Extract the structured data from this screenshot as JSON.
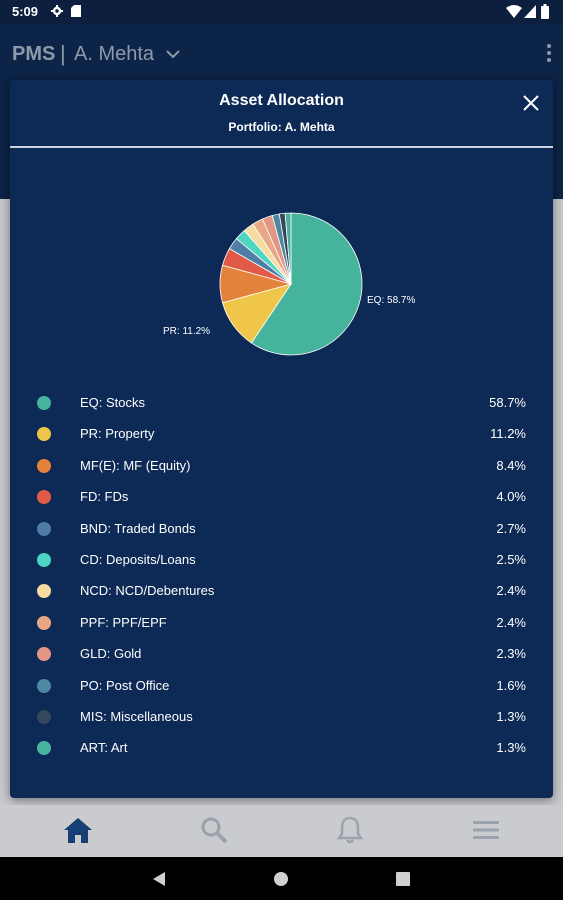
{
  "status_bar": {
    "time": "5:09",
    "icons": [
      "gear-icon",
      "sd-card-icon",
      "wifi-icon",
      "signal-icon",
      "battery-icon"
    ]
  },
  "header": {
    "app_name": "PMS",
    "divider": "|",
    "user": "A. Mehta",
    "icons": [
      "chevron-down-icon",
      "kebab-menu-icon"
    ]
  },
  "modal": {
    "title": "Asset Allocation",
    "subtitle": "Portfolio: A. Mehta",
    "close_icon": "close-icon"
  },
  "chart_data": {
    "type": "pie",
    "title": "",
    "slice_labels": [
      "EQ: 58.7%",
      "PR: 11.2%"
    ],
    "slices": [
      {
        "name": "EQ: Stocks",
        "value": 58.7,
        "color": "#46b39d"
      },
      {
        "name": "PR: Property",
        "value": 11.2,
        "color": "#f0c64a"
      },
      {
        "name": "MF(E): MF (Equity)",
        "value": 8.4,
        "color": "#e4813a"
      },
      {
        "name": "FD: FDs",
        "value": 4.0,
        "color": "#e05a47"
      },
      {
        "name": "BND: Traded Bonds",
        "value": 2.7,
        "color": "#4e7ea7"
      },
      {
        "name": "CD: Deposits/Loans",
        "value": 2.5,
        "color": "#4fd6c2"
      },
      {
        "name": "NCD: NCD/Debentures",
        "value": 2.4,
        "color": "#f4dba0"
      },
      {
        "name": "PPF: PPF/EPF",
        "value": 2.4,
        "color": "#e9a785"
      },
      {
        "name": "GLD: Gold",
        "value": 2.3,
        "color": "#e29784"
      },
      {
        "name": "PO: Post Office",
        "value": 1.6,
        "color": "#4d88a3"
      },
      {
        "name": "MIS: Miscellaneous",
        "value": 1.3,
        "color": "#35475c"
      },
      {
        "name": "ART: Art",
        "value": 1.3,
        "color": "#47b39e"
      }
    ]
  },
  "legend": [
    {
      "label": "EQ: Stocks",
      "value": "58.7%",
      "color": "#46b39d"
    },
    {
      "label": "PR: Property",
      "value": "11.2%",
      "color": "#f0c64a"
    },
    {
      "label": "MF(E): MF (Equity)",
      "value": "8.4%",
      "color": "#e4813a"
    },
    {
      "label": "FD: FDs",
      "value": "4.0%",
      "color": "#e05a47"
    },
    {
      "label": "BND: Traded Bonds",
      "value": "2.7%",
      "color": "#4e7ea7"
    },
    {
      "label": "CD: Deposits/Loans",
      "value": "2.5%",
      "color": "#4fd6c2"
    },
    {
      "label": "NCD: NCD/Debentures",
      "value": "2.4%",
      "color": "#f4dba0"
    },
    {
      "label": "PPF: PPF/EPF",
      "value": "2.4%",
      "color": "#e9a785"
    },
    {
      "label": "GLD: Gold",
      "value": "2.3%",
      "color": "#e29784"
    },
    {
      "label": "PO: Post Office",
      "value": "1.6%",
      "color": "#4d88a3"
    },
    {
      "label": "MIS: Miscellaneous",
      "value": "1.3%",
      "color": "#35475c"
    },
    {
      "label": "ART: Art",
      "value": "1.3%",
      "color": "#47b39e"
    }
  ],
  "bottom_nav": {
    "items": [
      "home-icon",
      "search-icon",
      "bell-icon",
      "hamburger-menu-icon"
    ],
    "active_color": "#163f73",
    "inactive_color": "#9aa2ad"
  },
  "system_nav": [
    "back-icon",
    "home-circle-icon",
    "recents-icon"
  ]
}
